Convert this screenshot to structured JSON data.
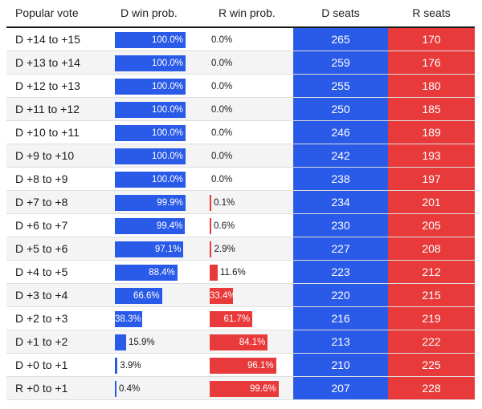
{
  "headers": {
    "vote": "Popular vote",
    "d_prob": "D win prob.",
    "r_prob": "R win prob.",
    "d_seats": "D seats",
    "r_seats": "R seats"
  },
  "colors": {
    "dem": "#2a5ae8",
    "rep": "#e83a3a"
  },
  "chart_data": {
    "type": "table",
    "columns": [
      "Popular vote",
      "D win prob.",
      "R win prob.",
      "D seats",
      "R seats"
    ],
    "rows": [
      {
        "vote": "D +14 to +15",
        "d_prob": 100.0,
        "r_prob": 0.0,
        "d_label": "100.0%",
        "r_label": "0.0%",
        "d_seats": 265,
        "r_seats": 170
      },
      {
        "vote": "D +13 to +14",
        "d_prob": 100.0,
        "r_prob": 0.0,
        "d_label": "100.0%",
        "r_label": "0.0%",
        "d_seats": 259,
        "r_seats": 176
      },
      {
        "vote": "D +12 to +13",
        "d_prob": 100.0,
        "r_prob": 0.0,
        "d_label": "100.0%",
        "r_label": "0.0%",
        "d_seats": 255,
        "r_seats": 180
      },
      {
        "vote": "D +11 to +12",
        "d_prob": 100.0,
        "r_prob": 0.0,
        "d_label": "100.0%",
        "r_label": "0.0%",
        "d_seats": 250,
        "r_seats": 185
      },
      {
        "vote": "D +10 to +11",
        "d_prob": 100.0,
        "r_prob": 0.0,
        "d_label": "100.0%",
        "r_label": "0.0%",
        "d_seats": 246,
        "r_seats": 189
      },
      {
        "vote": "D +9 to +10",
        "d_prob": 100.0,
        "r_prob": 0.0,
        "d_label": "100.0%",
        "r_label": "0.0%",
        "d_seats": 242,
        "r_seats": 193
      },
      {
        "vote": "D +8 to +9",
        "d_prob": 100.0,
        "r_prob": 0.0,
        "d_label": "100.0%",
        "r_label": "0.0%",
        "d_seats": 238,
        "r_seats": 197
      },
      {
        "vote": "D +7 to +8",
        "d_prob": 99.9,
        "r_prob": 0.1,
        "d_label": "99.9%",
        "r_label": "0.1%",
        "d_seats": 234,
        "r_seats": 201
      },
      {
        "vote": "D +6 to +7",
        "d_prob": 99.4,
        "r_prob": 0.6,
        "d_label": "99.4%",
        "r_label": "0.6%",
        "d_seats": 230,
        "r_seats": 205
      },
      {
        "vote": "D +5 to +6",
        "d_prob": 97.1,
        "r_prob": 2.9,
        "d_label": "97.1%",
        "r_label": "2.9%",
        "d_seats": 227,
        "r_seats": 208
      },
      {
        "vote": "D +4 to +5",
        "d_prob": 88.4,
        "r_prob": 11.6,
        "d_label": "88.4%",
        "r_label": "11.6%",
        "d_seats": 223,
        "r_seats": 212
      },
      {
        "vote": "D +3 to +4",
        "d_prob": 66.6,
        "r_prob": 33.4,
        "d_label": "66.6%",
        "r_label": "33.4%",
        "d_seats": 220,
        "r_seats": 215
      },
      {
        "vote": "D +2 to +3",
        "d_prob": 38.3,
        "r_prob": 61.7,
        "d_label": "38.3%",
        "r_label": "61.7%",
        "d_seats": 216,
        "r_seats": 219
      },
      {
        "vote": "D +1 to +2",
        "d_prob": 15.9,
        "r_prob": 84.1,
        "d_label": "15.9%",
        "r_label": "84.1%",
        "d_seats": 213,
        "r_seats": 222
      },
      {
        "vote": "D +0 to +1",
        "d_prob": 3.9,
        "r_prob": 96.1,
        "d_label": "3.9%",
        "r_label": "96.1%",
        "d_seats": 210,
        "r_seats": 225
      },
      {
        "vote": "R +0 to +1",
        "d_prob": 0.4,
        "r_prob": 99.6,
        "d_label": "0.4%",
        "r_label": "99.6%",
        "d_seats": 207,
        "r_seats": 228
      }
    ]
  }
}
